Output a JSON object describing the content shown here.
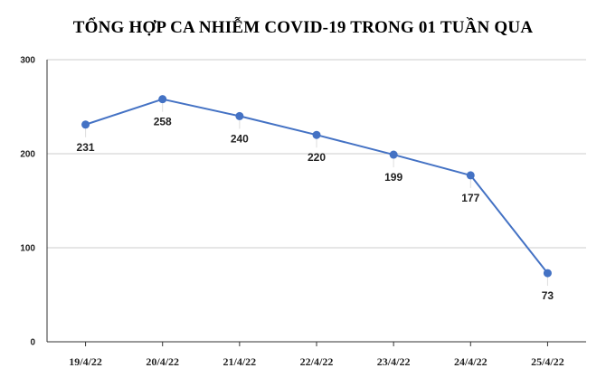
{
  "chart_data": {
    "type": "line",
    "title": "TỔNG HỢP CA NHIỄM COVID-19 TRONG 01 TUẦN QUA",
    "xlabel": "",
    "ylabel": "",
    "categories": [
      "19/4/22",
      "20/4/22",
      "21/4/22",
      "22/4/22",
      "23/4/22",
      "24/4/22",
      "25/4/22"
    ],
    "series": [
      {
        "values": [
          231,
          258,
          240,
          220,
          199,
          177,
          73
        ],
        "color": "#4472c4"
      }
    ],
    "data_labels": [
      "231",
      "258",
      "240",
      "220",
      "199",
      "177",
      "73"
    ],
    "ylim": [
      0,
      300
    ],
    "yticks": [
      "0",
      "100",
      "200",
      "300"
    ],
    "grid": true,
    "gridline_color": "#cccccc",
    "legend": "none"
  }
}
